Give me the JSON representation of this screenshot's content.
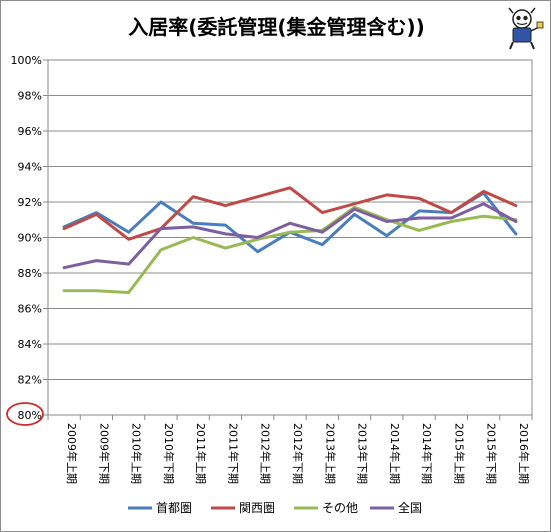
{
  "chart_data": {
    "type": "line",
    "title": "入居率(委託管理(集金管理含む))",
    "xlabel": "",
    "ylabel": "",
    "categories": [
      "2009年上期",
      "2009年下期",
      "2010年上期",
      "2010年下期",
      "2011年上期",
      "2011年下期",
      "2012年上期",
      "2012年下期",
      "2013年上期",
      "2013年下期",
      "2014年上期",
      "2014年下期",
      "2015年上期",
      "2015年下期",
      "2016年上期"
    ],
    "y_ticks": [
      "80%",
      "82%",
      "84%",
      "86%",
      "88%",
      "90%",
      "92%",
      "94%",
      "96%",
      "98%",
      "100%"
    ],
    "ylim": [
      80,
      100
    ],
    "grid": true,
    "legend_position": "bottom",
    "series": [
      {
        "name": "首都圏",
        "color": "#4a7ebb",
        "values": [
          90.6,
          91.4,
          90.3,
          92.0,
          90.8,
          90.7,
          89.2,
          90.3,
          89.6,
          91.3,
          90.1,
          91.5,
          91.4,
          92.5,
          90.2
        ]
      },
      {
        "name": "関西圏",
        "color": "#be4b48",
        "values": [
          90.5,
          91.3,
          89.9,
          90.5,
          92.3,
          91.8,
          92.3,
          92.8,
          91.4,
          91.9,
          92.4,
          92.2,
          91.4,
          92.6,
          91.8
        ]
      },
      {
        "name": "その他",
        "color": "#98b954",
        "values": [
          87.0,
          87.0,
          86.9,
          89.3,
          90.0,
          89.4,
          89.9,
          90.3,
          90.4,
          91.7,
          91.0,
          90.4,
          90.9,
          91.2,
          91.0
        ]
      },
      {
        "name": "全国",
        "color": "#7d5fa0",
        "values": [
          88.3,
          88.7,
          88.5,
          90.5,
          90.6,
          90.2,
          90.0,
          90.8,
          90.3,
          91.6,
          90.9,
          91.1,
          91.1,
          91.9,
          90.9
        ]
      }
    ]
  }
}
